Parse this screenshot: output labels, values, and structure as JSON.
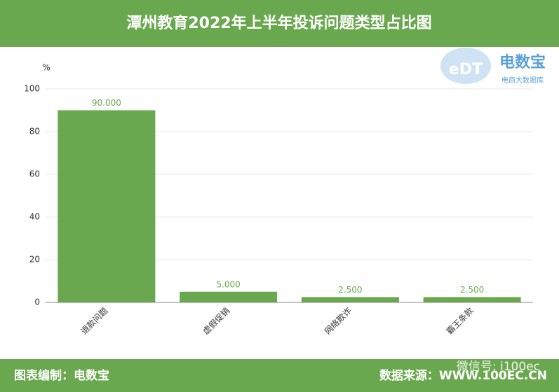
{
  "chart_data": {
    "type": "bar",
    "title": "潭州教育2022年上半年投诉问题类型占比图",
    "y_label": "%",
    "categories": [
      "退款问题",
      "虚假促销",
      "网络欺诈",
      "霸王条款"
    ],
    "values": [
      90,
      5,
      2.5,
      2.5
    ],
    "value_labels": [
      "90.000",
      "5.000",
      "2.500",
      "2.500"
    ],
    "color": "#6aa84f",
    "ylim": [
      0,
      100
    ],
    "yticks": [
      0,
      20,
      40,
      60,
      80,
      100
    ],
    "grid": true
  },
  "logo": {
    "mark": "eDT",
    "name": "电数宝",
    "tagline": "电商大数据库"
  },
  "footer": {
    "left": "图表编制：电数宝",
    "right": "数据来源：WWW.100EC.CN",
    "watermark": "微信号: i100ec"
  }
}
